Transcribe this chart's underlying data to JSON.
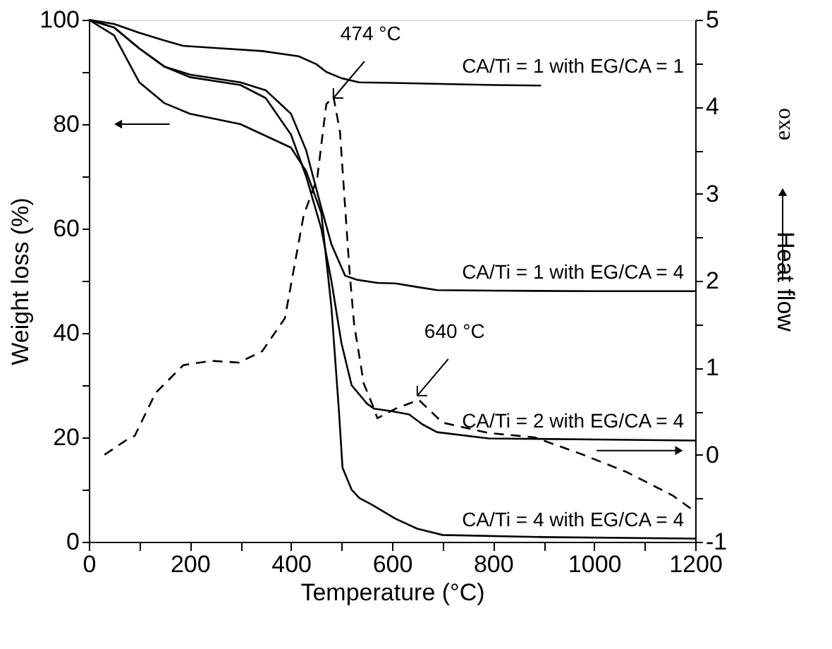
{
  "chart_data": {
    "type": "line",
    "xlabel": "Temperature (°C)",
    "ylabel": "Weight loss (%)",
    "y2label": "Heat flow",
    "xlim": [
      0,
      1200
    ],
    "ylim": [
      0,
      100
    ],
    "y2lim": [
      -1,
      5
    ],
    "xticks": [
      0,
      {
        "value": 100,
        "label": null
      },
      200,
      {
        "value": 300,
        "label": null
      },
      400,
      {
        "value": 500,
        "label": null
      },
      600,
      {
        "value": 700,
        "label": null
      },
      800,
      {
        "value": 900,
        "label": null
      },
      1000,
      {
        "value": 1100,
        "label": null
      },
      1200
    ],
    "yticks": [
      0,
      {
        "value": 10,
        "label": null
      },
      20,
      {
        "value": 30,
        "label": null
      },
      40,
      {
        "value": 50,
        "label": null
      },
      60,
      {
        "value": 70,
        "label": null
      },
      80,
      {
        "value": 90,
        "label": null
      },
      100
    ],
    "y2ticks": [
      -1,
      {
        "value": -0.5,
        "label": null
      },
      0,
      {
        "value": 0.5,
        "label": null
      },
      1,
      {
        "value": 1.5,
        "label": null
      },
      2,
      {
        "value": 2.5,
        "label": null
      },
      3,
      {
        "value": 3.5,
        "label": null
      },
      4,
      {
        "value": 4.5,
        "label": null
      },
      5
    ],
    "grid": false,
    "marker": "none",
    "series": [
      {
        "name": "CA/Ti = 1 with EG/CA = 1",
        "color": "#000000",
        "line_style": "solid",
        "x": [
          0,
          50,
          100,
          150,
          187,
          250,
          343,
          415,
          450,
          470,
          500,
          535,
          600,
          700,
          800,
          895
        ],
        "values": [
          100,
          99.2,
          97.5,
          96,
          95,
          94.6,
          94,
          93,
          91.5,
          90,
          88.8,
          88,
          87.9,
          87.7,
          87.5,
          87.4
        ]
      },
      {
        "name": "CA/Ti = 1 with EG/CA = 4",
        "color": "#000000",
        "line_style": "solid",
        "x": [
          0,
          50,
          100,
          150,
          200,
          300,
          350,
          400,
          430,
          460,
          480,
          507,
          530,
          571,
          607,
          650,
          689,
          800,
          1000,
          1200
        ],
        "values": [
          100,
          98.5,
          94.5,
          91,
          89.5,
          88,
          86.5,
          82,
          75,
          64,
          57,
          51,
          50.2,
          49.6,
          49.5,
          48.8,
          48.2,
          48.1,
          48,
          48
        ]
      },
      {
        "name": "CA/Ti = 2 with EG/CA = 4",
        "color": "#000000",
        "line_style": "solid",
        "x": [
          0,
          50,
          100,
          150,
          200,
          300,
          350,
          400,
          430,
          460,
          480,
          500,
          520,
          550,
          564,
          600,
          634,
          660,
          689,
          791,
          1000,
          1200
        ],
        "values": [
          100,
          98.5,
          94.5,
          91,
          89,
          87.5,
          85,
          78,
          70,
          60,
          50,
          38,
          30,
          26.5,
          25.5,
          25,
          24.4,
          22.5,
          21,
          19.8,
          19.6,
          19.4
        ]
      },
      {
        "name": "CA/Ti = 4 with EG/CA = 4",
        "color": "#000000",
        "line_style": "solid",
        "x": [
          0,
          50,
          100,
          150,
          200,
          300,
          400,
          430,
          460,
          480,
          495,
          502,
          520,
          535,
          560,
          607,
          650,
          700,
          900,
          1200
        ],
        "values": [
          100,
          97,
          88,
          84,
          82,
          80,
          75.5,
          71,
          63,
          45,
          25,
          14.2,
          10,
          8.4,
          7.1,
          4.4,
          2.5,
          1.3,
          0.9,
          0.6
        ]
      },
      {
        "color": "#000000",
        "line_style": "dashed",
        "axis": "y2",
        "x": [
          31,
          72,
          91,
          132,
          187,
          242,
          297,
          343,
          388,
          425,
          452,
          470,
          484,
          497,
          516,
          525,
          544,
          563,
          571,
          607,
          653,
          700,
          791,
          882,
          974,
          1065,
          1156,
          1194
        ],
        "values": [
          0,
          0.16,
          0.22,
          0.71,
          1.03,
          1.08,
          1.06,
          1.19,
          1.57,
          2.75,
          3.18,
          4.03,
          4.12,
          3.71,
          2.1,
          1.5,
          0.82,
          0.55,
          0.42,
          0.53,
          0.63,
          0.37,
          0.25,
          0.2,
          0.01,
          -0.2,
          -0.47,
          -0.63
        ]
      }
    ],
    "annotations": [
      {
        "text": "474 °C",
        "x": 484,
        "y": 85
      },
      {
        "text": "640 °C",
        "x": 650,
        "y": 28
      },
      "exo"
    ]
  }
}
